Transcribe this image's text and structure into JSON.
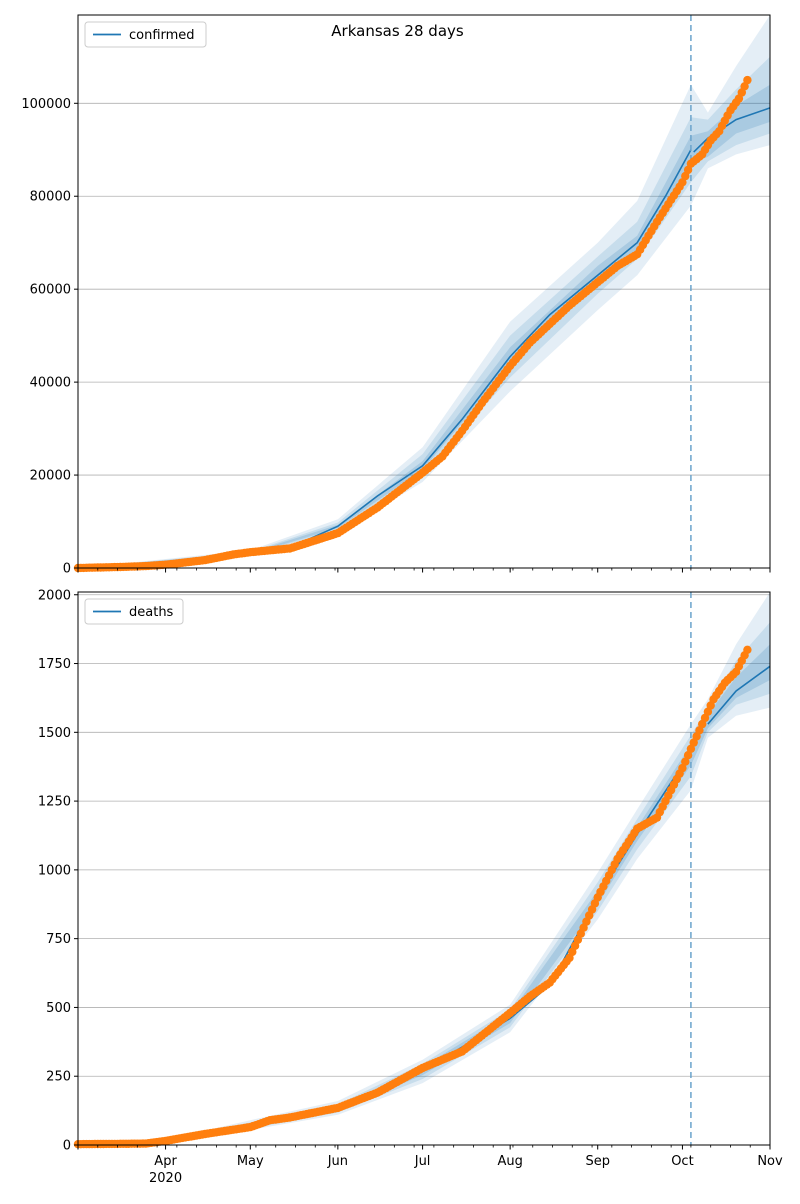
{
  "figure": {
    "title": "Arkansas 28 days"
  },
  "chart_data": [
    {
      "type": "line",
      "title": "Arkansas 28 days",
      "legend": {
        "label": "confirmed",
        "placement": "top-left"
      },
      "xlabel": "",
      "ylabel": "",
      "xlim": [
        "2020-03-01",
        "2020-11-01"
      ],
      "ylim": [
        0,
        119000
      ],
      "yticks": [
        0,
        20000,
        40000,
        60000,
        80000,
        100000
      ],
      "ytick_labels": [
        "0",
        "20000",
        "40000",
        "60000",
        "80000",
        "100000"
      ],
      "grid": "horizontal",
      "forecast_start": "2020-10-04",
      "model_line": {
        "x": [
          "2020-03-01",
          "2020-04-01",
          "2020-05-01",
          "2020-05-15",
          "2020-06-01",
          "2020-06-15",
          "2020-07-01",
          "2020-07-15",
          "2020-08-01",
          "2020-08-15",
          "2020-09-01",
          "2020-09-15",
          "2020-09-25",
          "2020-10-04",
          "2020-10-05",
          "2020-10-10",
          "2020-10-20",
          "2020-11-01"
        ],
        "y": [
          0,
          700,
          3100,
          4400,
          9000,
          15500,
          22000,
          32000,
          45500,
          54500,
          63000,
          70000,
          80000,
          90000,
          89500,
          92500,
          96500,
          99000
        ]
      },
      "bands": [
        {
          "x": [
            "2020-03-01",
            "2020-05-01",
            "2020-06-01",
            "2020-07-01",
            "2020-08-01",
            "2020-09-01",
            "2020-09-15",
            "2020-10-04",
            "2020-10-10",
            "2020-10-20",
            "2020-11-01"
          ],
          "lower": [
            0,
            2500,
            7500,
            18500,
            38000,
            55500,
            63000,
            78000,
            86000,
            89000,
            91000
          ],
          "upper": [
            0,
            3800,
            10500,
            26000,
            53000,
            70000,
            79000,
            104000,
            98000,
            108000,
            119000
          ]
        },
        {
          "x": [
            "2020-03-01",
            "2020-05-01",
            "2020-06-01",
            "2020-07-01",
            "2020-08-01",
            "2020-09-01",
            "2020-09-15",
            "2020-10-04",
            "2020-10-10",
            "2020-10-20",
            "2020-11-01"
          ],
          "lower": [
            0,
            2800,
            8200,
            20000,
            41000,
            59000,
            66500,
            83000,
            87500,
            91000,
            93500
          ],
          "upper": [
            0,
            3500,
            9800,
            24500,
            50000,
            67000,
            74500,
            97000,
            96500,
            103000,
            110000
          ]
        },
        {
          "x": [
            "2020-03-01",
            "2020-05-01",
            "2020-06-01",
            "2020-07-01",
            "2020-08-01",
            "2020-09-01",
            "2020-09-15",
            "2020-10-04",
            "2020-10-10",
            "2020-10-20",
            "2020-11-01"
          ],
          "lower": [
            0,
            2950,
            8600,
            21200,
            43500,
            61000,
            68500,
            87000,
            88500,
            93500,
            96000
          ],
          "upper": [
            0,
            3300,
            9300,
            23000,
            47500,
            65000,
            71500,
            93000,
            94000,
            99500,
            104000
          ]
        }
      ],
      "observed": {
        "x": [
          "2020-03-01",
          "2020-03-15",
          "2020-03-25",
          "2020-04-01",
          "2020-04-15",
          "2020-04-25",
          "2020-05-01",
          "2020-05-15",
          "2020-06-01",
          "2020-06-15",
          "2020-07-01",
          "2020-07-08",
          "2020-07-15",
          "2020-07-22",
          "2020-08-01",
          "2020-08-08",
          "2020-08-15",
          "2020-08-22",
          "2020-09-01",
          "2020-09-08",
          "2020-09-15",
          "2020-09-22",
          "2020-10-01",
          "2020-10-04",
          "2020-10-08",
          "2020-10-11",
          "2020-10-14",
          "2020-10-18",
          "2020-10-21",
          "2020-10-24"
        ],
        "y": [
          0,
          200,
          400,
          700,
          1700,
          2900,
          3400,
          4200,
          7500,
          13000,
          20500,
          24000,
          29500,
          35500,
          43500,
          48500,
          52500,
          56500,
          61500,
          65000,
          67500,
          74500,
          83000,
          87000,
          89000,
          92000,
          94000,
          98500,
          101000,
          105000
        ]
      }
    },
    {
      "type": "line",
      "title": "",
      "legend": {
        "label": "deaths",
        "placement": "top-left"
      },
      "xlabel": "",
      "ylabel": "",
      "xlim": [
        "2020-03-01",
        "2020-11-01"
      ],
      "ylim": [
        0,
        2010
      ],
      "yticks": [
        0,
        250,
        500,
        750,
        1000,
        1250,
        1500,
        1750,
        2000
      ],
      "ytick_labels": [
        "0",
        "250",
        "500",
        "750",
        "1000",
        "1250",
        "1500",
        "1750",
        "2000"
      ],
      "xticks": [
        "2020-04-01",
        "2020-05-01",
        "2020-06-01",
        "2020-07-01",
        "2020-08-01",
        "2020-09-01",
        "2020-10-01",
        "2020-11-01"
      ],
      "xtick_labels": [
        "Apr",
        "May",
        "Jun",
        "Jul",
        "Aug",
        "Sep",
        "Oct",
        "Nov"
      ],
      "xtick_year_label": "2020",
      "grid": "horizontal",
      "forecast_start": "2020-10-04",
      "model_line": {
        "x": [
          "2020-03-01",
          "2020-03-20",
          "2020-04-01",
          "2020-05-01",
          "2020-06-01",
          "2020-07-01",
          "2020-08-01",
          "2020-08-15",
          "2020-09-01",
          "2020-09-15",
          "2020-10-01",
          "2020-10-04",
          "2020-10-10",
          "2020-10-20",
          "2020-11-01"
        ],
        "y": [
          0,
          2,
          15,
          70,
          130,
          270,
          460,
          580,
          900,
          1130,
          1380,
          1420,
          1530,
          1650,
          1740
        ]
      },
      "bands": [
        {
          "x": [
            "2020-03-01",
            "2020-04-01",
            "2020-05-01",
            "2020-06-01",
            "2020-07-01",
            "2020-08-01",
            "2020-09-01",
            "2020-09-15",
            "2020-10-04",
            "2020-10-10",
            "2020-10-20",
            "2020-11-01"
          ],
          "lower": [
            0,
            10,
            55,
            110,
            225,
            410,
            820,
            1040,
            1290,
            1480,
            1560,
            1590
          ],
          "upper": [
            0,
            20,
            90,
            160,
            310,
            510,
            990,
            1220,
            1530,
            1620,
            1820,
            2010
          ]
        },
        {
          "x": [
            "2020-03-01",
            "2020-04-01",
            "2020-05-01",
            "2020-06-01",
            "2020-07-01",
            "2020-08-01",
            "2020-09-01",
            "2020-09-15",
            "2020-10-04",
            "2020-10-10",
            "2020-10-20",
            "2020-11-01"
          ],
          "lower": [
            0,
            12,
            60,
            118,
            240,
            428,
            850,
            1075,
            1340,
            1500,
            1600,
            1640
          ],
          "upper": [
            0,
            18,
            82,
            148,
            295,
            492,
            955,
            1185,
            1490,
            1590,
            1760,
            1900
          ]
        },
        {
          "x": [
            "2020-03-01",
            "2020-04-01",
            "2020-05-01",
            "2020-06-01",
            "2020-07-01",
            "2020-08-01",
            "2020-09-01",
            "2020-09-15",
            "2020-10-04",
            "2020-10-10",
            "2020-10-20",
            "2020-11-01"
          ],
          "lower": [
            0,
            13,
            64,
            124,
            254,
            443,
            875,
            1105,
            1380,
            1515,
            1625,
            1690
          ],
          "upper": [
            0,
            17,
            76,
            138,
            285,
            478,
            925,
            1155,
            1455,
            1565,
            1700,
            1820
          ]
        }
      ],
      "observed": {
        "x": [
          "2020-03-01",
          "2020-03-25",
          "2020-04-01",
          "2020-04-15",
          "2020-05-01",
          "2020-05-08",
          "2020-05-15",
          "2020-06-01",
          "2020-06-15",
          "2020-07-01",
          "2020-07-15",
          "2020-08-01",
          "2020-08-08",
          "2020-08-15",
          "2020-08-22",
          "2020-09-01",
          "2020-09-08",
          "2020-09-15",
          "2020-09-22",
          "2020-10-01",
          "2020-10-04",
          "2020-10-08",
          "2020-10-12",
          "2020-10-16",
          "2020-10-20",
          "2020-10-24"
        ],
        "y": [
          3,
          5,
          15,
          40,
          65,
          90,
          100,
          135,
          190,
          280,
          340,
          480,
          540,
          590,
          680,
          900,
          1040,
          1150,
          1190,
          1370,
          1440,
          1530,
          1620,
          1680,
          1720,
          1800
        ]
      }
    }
  ]
}
